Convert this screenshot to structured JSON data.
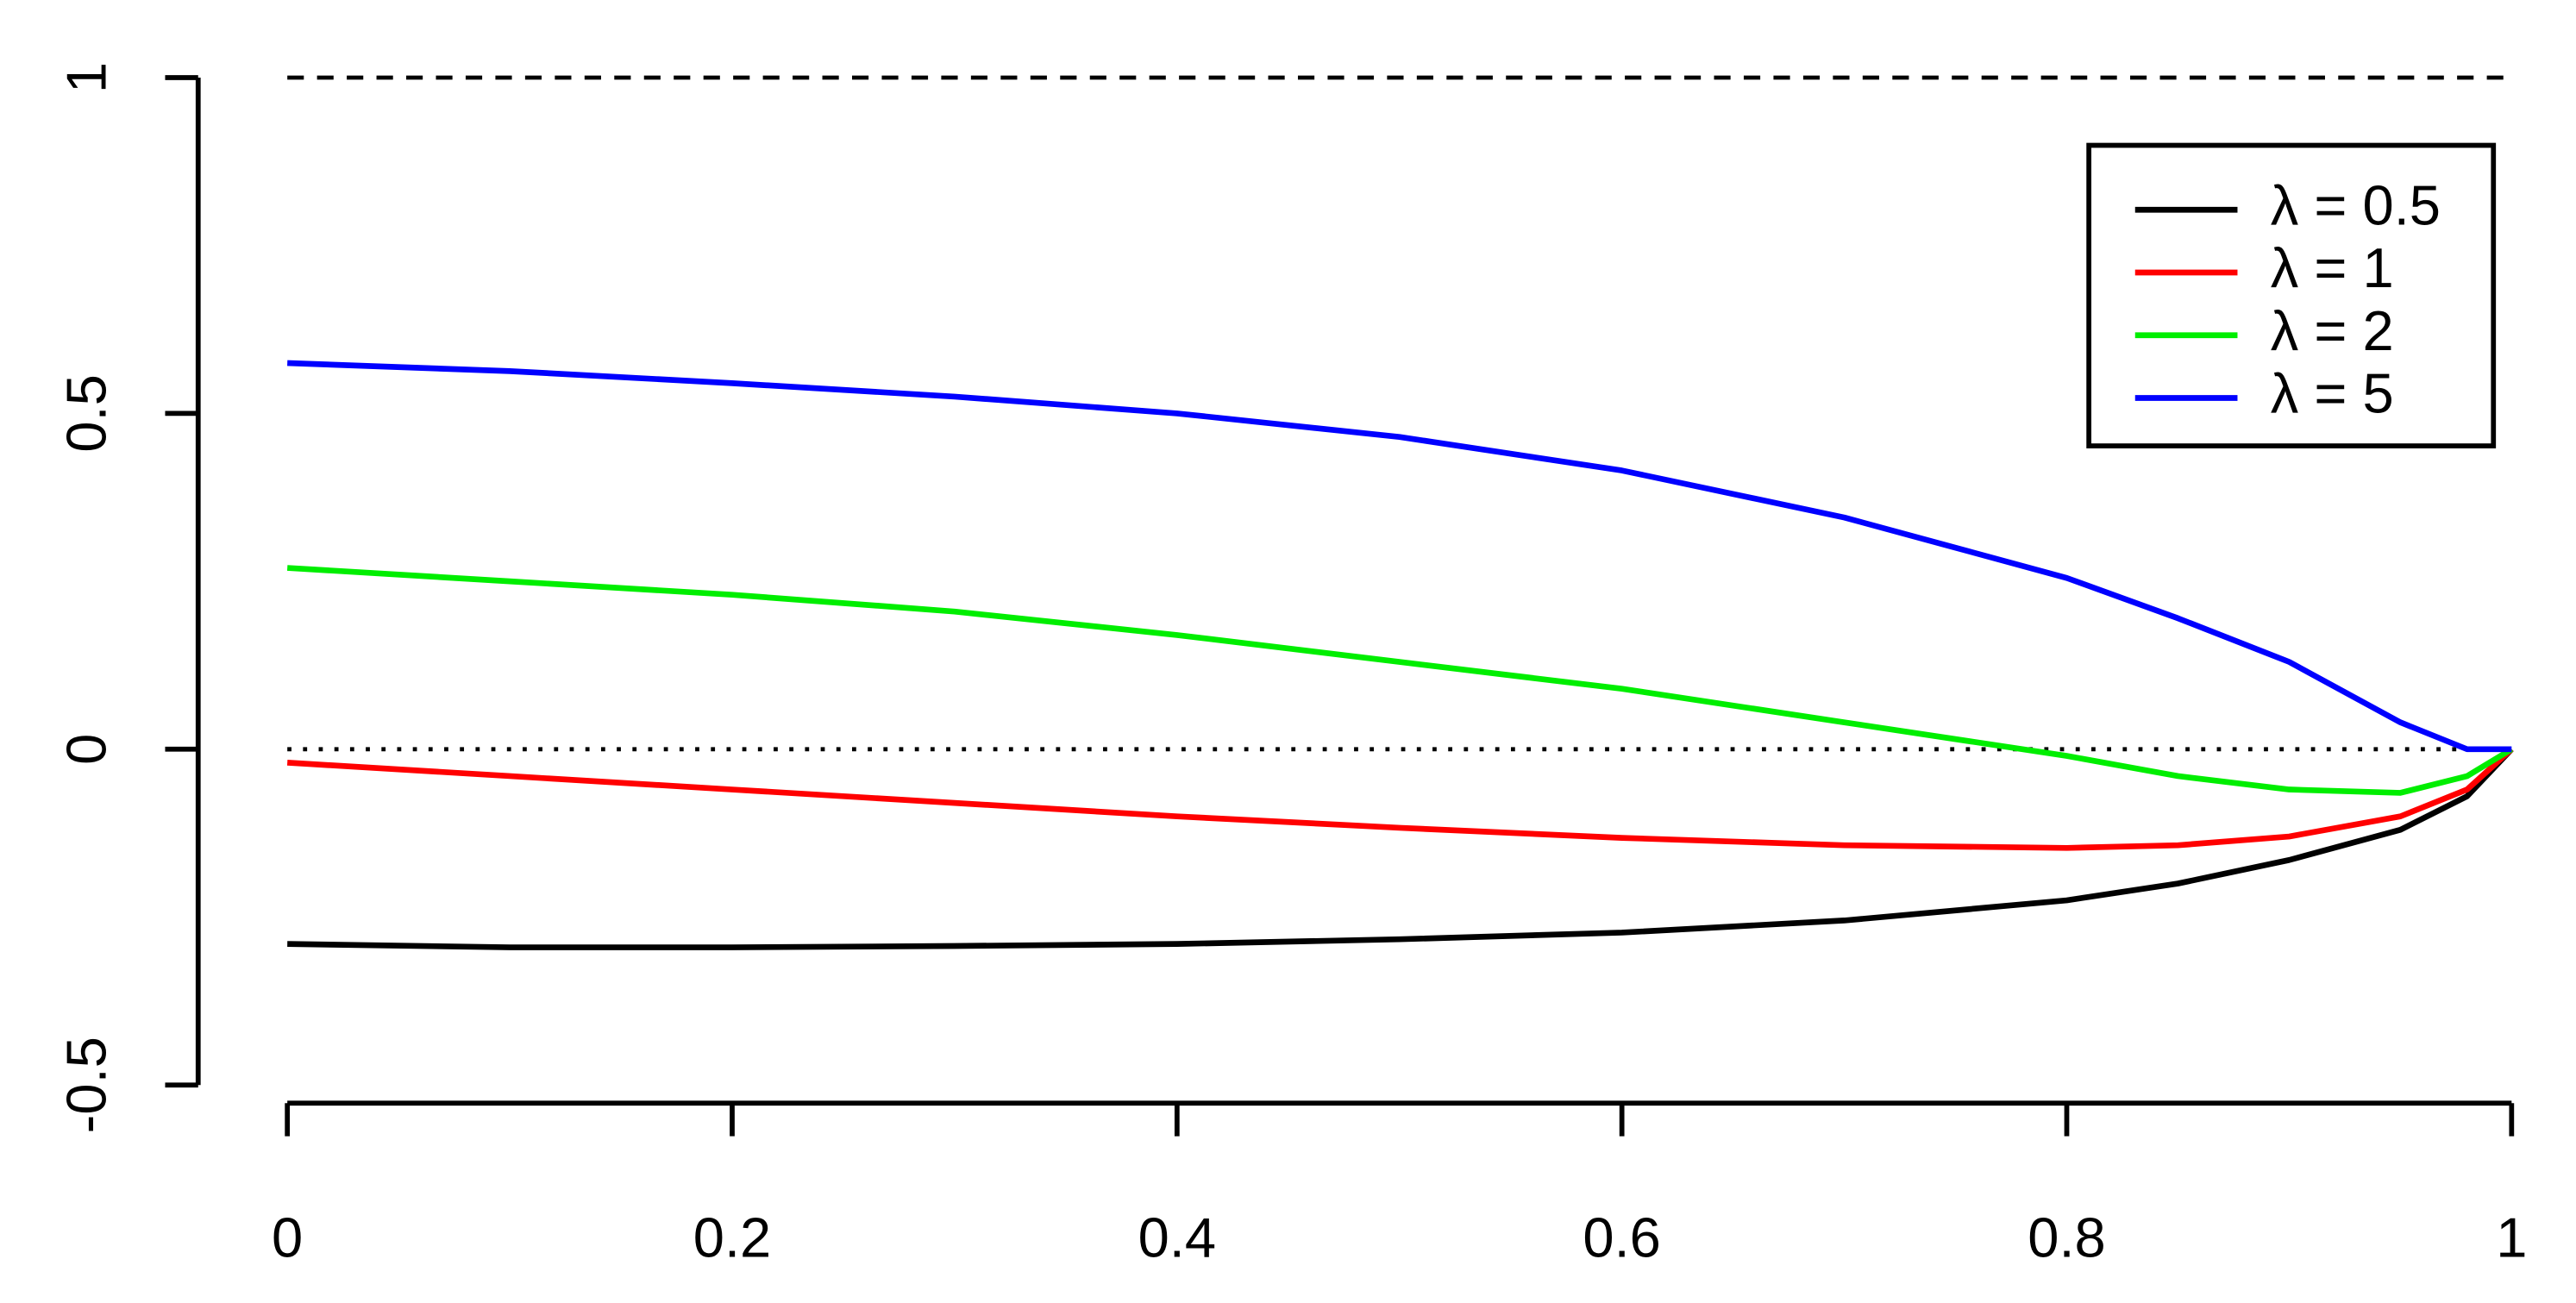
{
  "chart_data": {
    "type": "line",
    "x": [
      0,
      0.1,
      0.2,
      0.3,
      0.4,
      0.5,
      0.6,
      0.7,
      0.8,
      0.85,
      0.9,
      0.95,
      0.98,
      1
    ],
    "series": [
      {
        "name": "λ = 0.5",
        "color": "#000000",
        "values": [
          -0.29,
          -0.295,
          -0.295,
          -0.293,
          -0.29,
          -0.283,
          -0.273,
          -0.255,
          -0.225,
          -0.2,
          -0.165,
          -0.12,
          -0.07,
          0
        ]
      },
      {
        "name": "λ = 1",
        "color": "#ff0000",
        "values": [
          -0.02,
          -0.04,
          -0.06,
          -0.08,
          -0.1,
          -0.117,
          -0.132,
          -0.143,
          -0.147,
          -0.143,
          -0.13,
          -0.1,
          -0.06,
          0
        ]
      },
      {
        "name": "λ = 2",
        "color": "#00ee00",
        "values": [
          0.27,
          0.25,
          0.23,
          0.205,
          0.17,
          0.13,
          0.09,
          0.04,
          -0.01,
          -0.04,
          -0.06,
          -0.065,
          -0.04,
          0
        ]
      },
      {
        "name": "λ = 5",
        "color": "#0000ff",
        "values": [
          0.575,
          0.563,
          0.545,
          0.525,
          0.5,
          0.465,
          0.415,
          0.345,
          0.255,
          0.195,
          0.13,
          0.04,
          0.0,
          0
        ]
      }
    ],
    "xlim": [
      0,
      1
    ],
    "xticks": [
      0,
      0.2,
      0.4,
      0.6,
      0.8,
      1
    ],
    "ylim": [
      -0.5,
      1
    ],
    "yticks": [
      -0.5,
      0,
      0.5,
      1
    ],
    "hlines": [
      {
        "value": 1,
        "style": "dashed"
      },
      {
        "value": 0,
        "style": "dotted"
      }
    ],
    "legend": "topright"
  }
}
